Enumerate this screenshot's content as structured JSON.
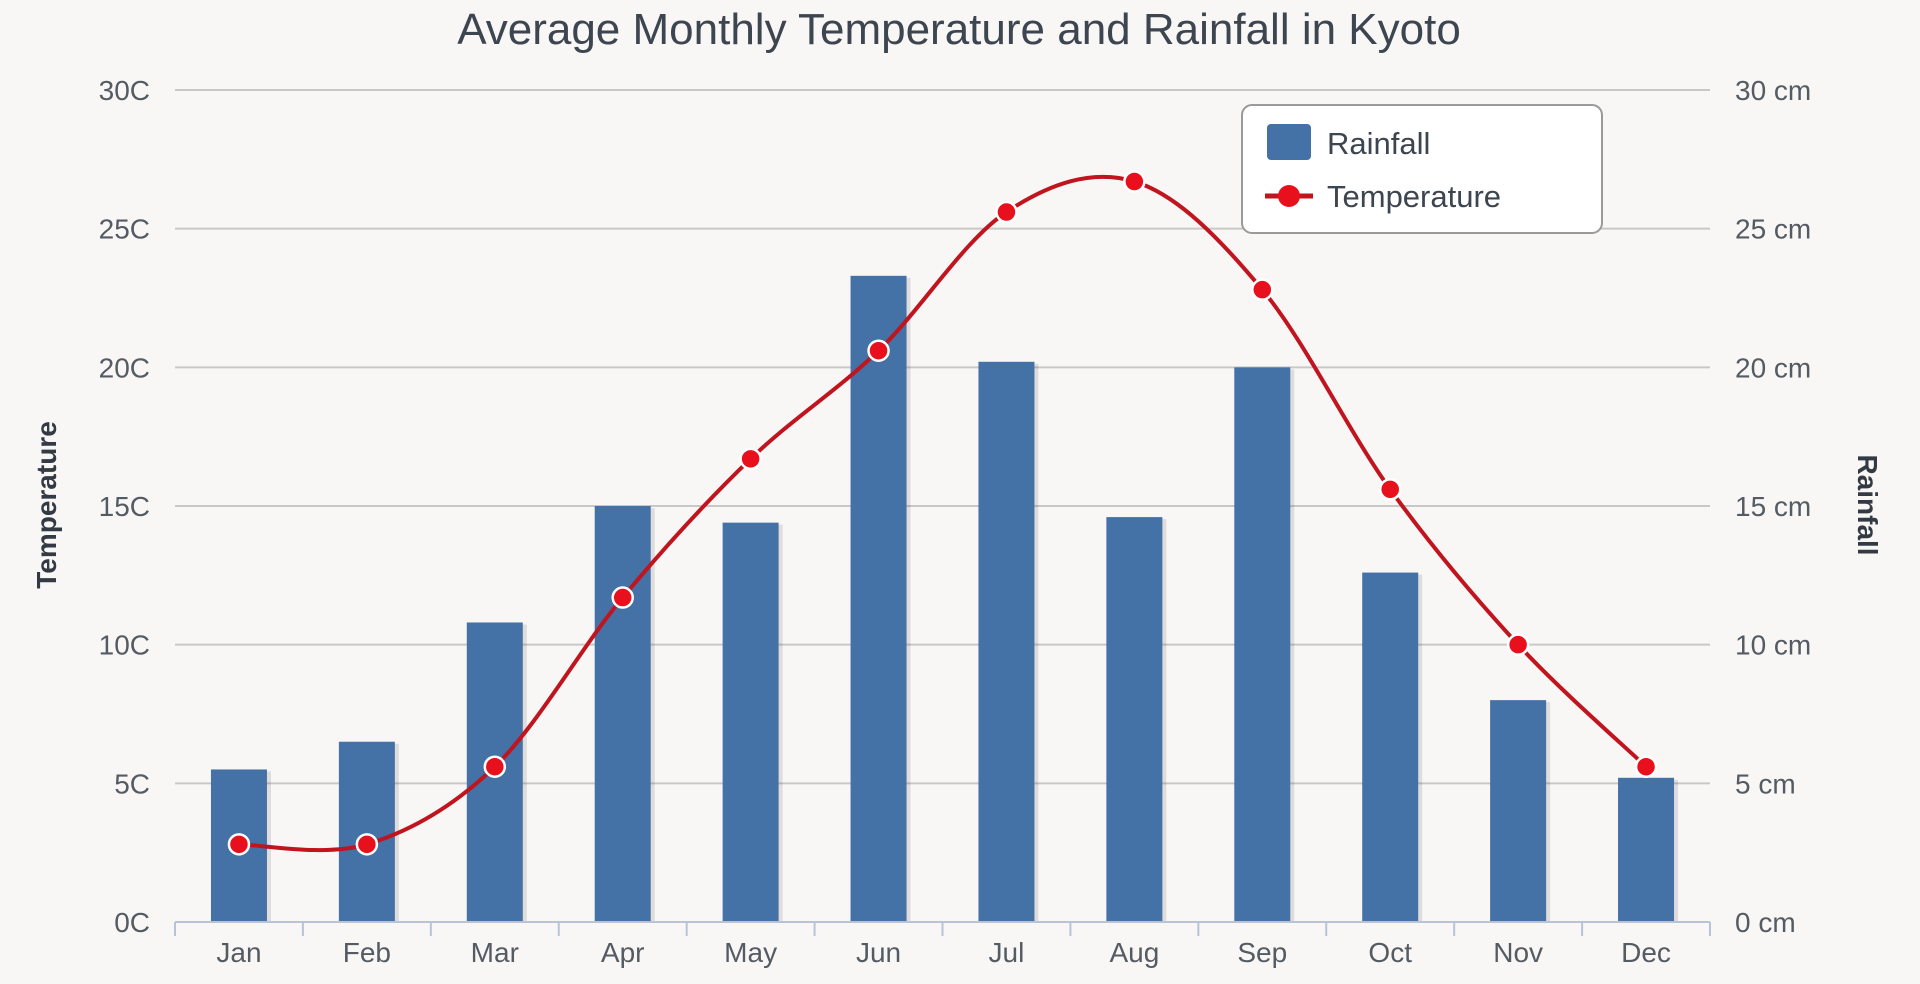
{
  "colors": {
    "background": "#f8f7f5",
    "bar": "#4471a6",
    "line": "#c0141e",
    "marker": "#e8101c",
    "grid": "#c8c8c8"
  },
  "chart_data": {
    "type": "bar",
    "title": "Average Monthly Temperature and Rainfall in Kyoto",
    "categories": [
      "Jan",
      "Feb",
      "Mar",
      "Apr",
      "May",
      "Jun",
      "Jul",
      "Aug",
      "Sep",
      "Oct",
      "Nov",
      "Dec"
    ],
    "series": [
      {
        "name": "Rainfall",
        "type": "bar",
        "axis": "right",
        "values": [
          5.5,
          6.5,
          10.8,
          15.0,
          14.4,
          23.3,
          20.2,
          14.6,
          20.0,
          12.6,
          8.0,
          5.2
        ]
      },
      {
        "name": "Temperature",
        "type": "line",
        "axis": "left",
        "smooth": true,
        "markers": true,
        "values": [
          2.8,
          2.8,
          5.6,
          11.7,
          16.7,
          20.6,
          25.6,
          26.7,
          22.8,
          15.6,
          10.0,
          5.6
        ]
      }
    ],
    "y_left": {
      "label": "Temperature",
      "min": 0,
      "max": 30,
      "ticks": [
        "0C",
        "5C",
        "10C",
        "15C",
        "20C",
        "25C",
        "30C"
      ]
    },
    "y_right": {
      "label": "Rainfall",
      "min": 0,
      "max": 30,
      "ticks": [
        "0 cm",
        "5 cm",
        "10 cm",
        "15 cm",
        "20 cm",
        "25 cm",
        "30 cm"
      ]
    },
    "grid": true,
    "legend": {
      "position": "top-right",
      "entries": [
        "Rainfall",
        "Temperature"
      ]
    }
  }
}
